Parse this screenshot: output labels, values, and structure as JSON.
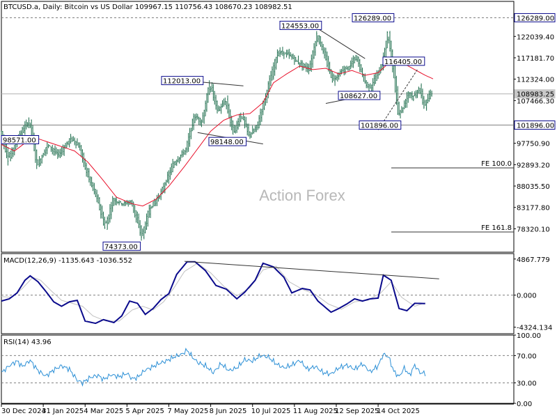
{
  "header": "BTCUSD.a, Daily:  Bitcoin vs US Dollar  109967.15 110756.43 108670.23 108982.51",
  "watermark": "Action Forex",
  "colors": {
    "candles": "#1a6b4a",
    "ma": "#e8102a",
    "trendlines": "#333333",
    "macd": "#0a0a8c",
    "signal": "#c0c0c0",
    "rsi": "#2b8fd6",
    "label_border": "#0a0a8c",
    "grid": "#808080"
  },
  "x_axis": {
    "ticks": [
      "30 Dec 2024",
      "31 Jan 2025",
      "4 Mar 2025",
      "5 Apr 2025",
      "7 May 2025",
      "8 Jun 2025",
      "10 Jul 2025",
      "11 Aug 2025",
      "12 Sep 2025",
      "14 Oct 2025"
    ]
  },
  "chart_data": [
    {
      "type": "candlestick",
      "name": "price",
      "ylim": [
        73000,
        130000
      ],
      "y_ticks": [
        "126289.00",
        "122039.40",
        "117181.70",
        "112324.00",
        "108983.25",
        "107466.30",
        "101896.00",
        "97750.90",
        "92893.20",
        "88035.50",
        "83177.80",
        "78320.10"
      ],
      "y_tick_values": [
        126289,
        122039.4,
        117181.7,
        112324,
        108983.25,
        107466.3,
        101896,
        97750.9,
        92893.2,
        88035.5,
        83177.8,
        78320.1
      ],
      "current_price": "108983.25",
      "horizontal_levels": [
        {
          "label": "101896.00",
          "value": 101896
        },
        {
          "label": "126289.00",
          "value": 126289
        }
      ],
      "fe_levels": [
        {
          "label": "FE 100.0",
          "value": 92150
        },
        {
          "label": "FE 161.8",
          "value": 77600
        }
      ],
      "annotations": [
        {
          "text": "98571.00",
          "value": 98571
        },
        {
          "text": "112013.00",
          "value": 112013
        },
        {
          "text": "98148.00",
          "value": 98148
        },
        {
          "text": "124553.00",
          "value": 124553
        },
        {
          "text": "126289.00",
          "value": 126289
        },
        {
          "text": "116405.00",
          "value": 116405
        },
        {
          "text": "108627.00",
          "value": 108627
        },
        {
          "text": "101896.00",
          "value": 101896
        },
        {
          "text": "74373.00",
          "value": 74373
        }
      ],
      "path": [
        [
          0,
          100500
        ],
        [
          6,
          94000
        ],
        [
          14,
          99500
        ],
        [
          22,
          103000
        ],
        [
          28,
          92500
        ],
        [
          36,
          97500
        ],
        [
          44,
          95000
        ],
        [
          54,
          99000
        ],
        [
          60,
          97000
        ],
        [
          66,
          91000
        ],
        [
          74,
          85000
        ],
        [
          80,
          78500
        ],
        [
          86,
          85000
        ],
        [
          94,
          84000
        ],
        [
          100,
          84500
        ],
        [
          108,
          76500
        ],
        [
          114,
          83000
        ],
        [
          122,
          86000
        ],
        [
          132,
          93000
        ],
        [
          142,
          96500
        ],
        [
          148,
          104000
        ],
        [
          154,
          102500
        ],
        [
          160,
          111500
        ],
        [
          166,
          105000
        ],
        [
          172,
          107500
        ],
        [
          178,
          100000
        ],
        [
          184,
          104500
        ],
        [
          190,
          99500
        ],
        [
          196,
          101500
        ],
        [
          204,
          110000
        ],
        [
          212,
          118500
        ],
        [
          220,
          118000
        ],
        [
          228,
          116000
        ],
        [
          236,
          114500
        ],
        [
          242,
          122500
        ],
        [
          248,
          117500
        ],
        [
          254,
          112000
        ],
        [
          260,
          114000
        ],
        [
          266,
          115000
        ],
        [
          272,
          117500
        ],
        [
          278,
          112000
        ],
        [
          282,
          110000
        ],
        [
          288,
          113500
        ],
        [
          292,
          115500
        ],
        [
          296,
          123000
        ],
        [
          300,
          115000
        ],
        [
          304,
          104500
        ],
        [
          308,
          106000
        ],
        [
          312,
          109500
        ],
        [
          316,
          108000
        ],
        [
          320,
          110500
        ],
        [
          324,
          106000
        ],
        [
          330,
          110000
        ]
      ],
      "ma_path": [
        [
          0,
          97500
        ],
        [
          10,
          96000
        ],
        [
          18,
          97800
        ],
        [
          26,
          99000
        ],
        [
          34,
          98200
        ],
        [
          44,
          97200
        ],
        [
          56,
          96000
        ],
        [
          66,
          93500
        ],
        [
          76,
          90000
        ],
        [
          88,
          85500
        ],
        [
          100,
          84000
        ],
        [
          108,
          83500
        ],
        [
          118,
          85000
        ],
        [
          128,
          88000
        ],
        [
          140,
          92500
        ],
        [
          150,
          96500
        ],
        [
          160,
          100500
        ],
        [
          170,
          103000
        ],
        [
          180,
          104200
        ],
        [
          190,
          104500
        ],
        [
          200,
          107000
        ],
        [
          208,
          111500
        ],
        [
          218,
          113500
        ],
        [
          228,
          115300
        ],
        [
          238,
          114500
        ],
        [
          248,
          114800
        ],
        [
          258,
          113500
        ],
        [
          268,
          114300
        ],
        [
          278,
          113200
        ],
        [
          288,
          113800
        ],
        [
          298,
          116500
        ],
        [
          308,
          115800
        ],
        [
          316,
          114500
        ],
        [
          324,
          113200
        ],
        [
          330,
          112400
        ]
      ],
      "trendlines": [
        [
          [
            140,
            112013
          ],
          [
            185,
            110800
          ]
        ],
        [
          [
            150,
            100200
          ],
          [
            200,
            97600
          ]
        ],
        [
          [
            238,
            124553
          ],
          [
            278,
            117000
          ]
        ],
        [
          [
            248,
            106800
          ],
          [
            288,
            109200
          ]
        ],
        [
          [
            288,
            100800
          ],
          [
            318,
            114500
          ]
        ]
      ],
      "bars": 330
    },
    {
      "type": "line",
      "name": "MACD(12,26,9)",
      "label": "MACD(12,26,9) -1135.643 -1036.552",
      "ylim": [
        -5200,
        5600
      ],
      "y_ticks": [
        "4867.779",
        "0.000",
        "-4324.134"
      ],
      "y_tick_values": [
        4867.779,
        0,
        -4324.134
      ],
      "series": [
        {
          "values": [
            [
              0,
              -800
            ],
            [
              6,
              -500
            ],
            [
              12,
              300
            ],
            [
              18,
              2000
            ],
            [
              22,
              2600
            ],
            [
              28,
              1800
            ],
            [
              34,
              500
            ],
            [
              40,
              -900
            ],
            [
              46,
              -1500
            ],
            [
              52,
              -900
            ],
            [
              58,
              -700
            ],
            [
              64,
              -3500
            ],
            [
              72,
              -3800
            ],
            [
              78,
              -3300
            ],
            [
              86,
              -3700
            ],
            [
              92,
              -2800
            ],
            [
              98,
              -800
            ],
            [
              104,
              -1100
            ],
            [
              110,
              -2600
            ],
            [
              116,
              -1800
            ],
            [
              122,
              -600
            ],
            [
              128,
              200
            ],
            [
              134,
              2800
            ],
            [
              142,
              4500
            ],
            [
              148,
              4500
            ],
            [
              156,
              3300
            ],
            [
              164,
              1300
            ],
            [
              172,
              800
            ],
            [
              180,
              -500
            ],
            [
              186,
              400
            ],
            [
              194,
              2000
            ],
            [
              200,
              4300
            ],
            [
              208,
              3800
            ],
            [
              216,
              2400
            ],
            [
              222,
              300
            ],
            [
              230,
              900
            ],
            [
              236,
              700
            ],
            [
              242,
              -800
            ],
            [
              252,
              -2300
            ],
            [
              258,
              -1800
            ],
            [
              264,
              -1200
            ],
            [
              270,
              -500
            ],
            [
              276,
              -800
            ],
            [
              282,
              -500
            ],
            [
              288,
              -400
            ],
            [
              292,
              2700
            ],
            [
              298,
              2000
            ],
            [
              304,
              -1800
            ],
            [
              310,
              -2100
            ],
            [
              316,
              -1100
            ],
            [
              324,
              -1135.643
            ]
          ]
        },
        {
          "values": [
            [
              0,
              -200
            ],
            [
              8,
              -300
            ],
            [
              16,
              900
            ],
            [
              24,
              2400
            ],
            [
              30,
              2000
            ],
            [
              38,
              600
            ],
            [
              46,
              -700
            ],
            [
              54,
              -1100
            ],
            [
              62,
              -1500
            ],
            [
              70,
              -2800
            ],
            [
              80,
              -3500
            ],
            [
              90,
              -3500
            ],
            [
              100,
              -2000
            ],
            [
              108,
              -1500
            ],
            [
              116,
              -2000
            ],
            [
              124,
              -900
            ],
            [
              132,
              1000
            ],
            [
              140,
              3200
            ],
            [
              150,
              4300
            ],
            [
              160,
              3000
            ],
            [
              170,
              1200
            ],
            [
              180,
              -100
            ],
            [
              190,
              1000
            ],
            [
              200,
              3400
            ],
            [
              210,
              3900
            ],
            [
              220,
              1800
            ],
            [
              230,
              800
            ],
            [
              240,
              100
            ],
            [
              250,
              -1200
            ],
            [
              260,
              -1900
            ],
            [
              270,
              -900
            ],
            [
              280,
              -700
            ],
            [
              290,
              300
            ],
            [
              298,
              1800
            ],
            [
              306,
              -300
            ],
            [
              316,
              -1500
            ],
            [
              324,
              -1036.552
            ]
          ]
        }
      ],
      "trendline": [
        [
          140,
          4550
        ],
        [
          324,
          2200
        ]
      ]
    },
    {
      "type": "line",
      "name": "RSI(14)",
      "label": "RSI(14) 43.96",
      "ylim": [
        0,
        100
      ],
      "y_ticks": [
        "100.00",
        "70.00",
        "30.00",
        "0.00"
      ],
      "y_tick_values": [
        100,
        70,
        30,
        0
      ],
      "series": [
        {
          "values": [
            [
              0,
              45
            ],
            [
              6,
              55
            ],
            [
              12,
              62
            ],
            [
              16,
              54
            ],
            [
              22,
              63
            ],
            [
              28,
              48
            ],
            [
              34,
              40
            ],
            [
              40,
              49
            ],
            [
              46,
              55
            ],
            [
              52,
              50
            ],
            [
              58,
              34
            ],
            [
              62,
              30
            ],
            [
              68,
              38
            ],
            [
              74,
              41
            ],
            [
              78,
              35
            ],
            [
              84,
              42
            ],
            [
              90,
              39
            ],
            [
              96,
              44
            ],
            [
              100,
              36
            ],
            [
              104,
              38
            ],
            [
              110,
              49
            ],
            [
              114,
              52
            ],
            [
              120,
              58
            ],
            [
              126,
              62
            ],
            [
              132,
              68
            ],
            [
              138,
              72
            ],
            [
              142,
              78
            ],
            [
              146,
              68
            ],
            [
              150,
              60
            ],
            [
              156,
              55
            ],
            [
              162,
              45
            ],
            [
              168,
              58
            ],
            [
              174,
              48
            ],
            [
              180,
              52
            ],
            [
              186,
              64
            ],
            [
              192,
              62
            ],
            [
              198,
              70
            ],
            [
              204,
              68
            ],
            [
              210,
              58
            ],
            [
              216,
              52
            ],
            [
              222,
              56
            ],
            [
              228,
              63
            ],
            [
              234,
              50
            ],
            [
              240,
              54
            ],
            [
              246,
              45
            ],
            [
              252,
              43
            ],
            [
              258,
              52
            ],
            [
              264,
              56
            ],
            [
              270,
              50
            ],
            [
              276,
              58
            ],
            [
              282,
              46
            ],
            [
              288,
              55
            ],
            [
              292,
              72
            ],
            [
              296,
              68
            ],
            [
              300,
              47
            ],
            [
              304,
              39
            ],
            [
              308,
              52
            ],
            [
              312,
              41
            ],
            [
              316,
              56
            ],
            [
              320,
              45
            ],
            [
              324,
              43.96
            ]
          ]
        }
      ]
    }
  ]
}
